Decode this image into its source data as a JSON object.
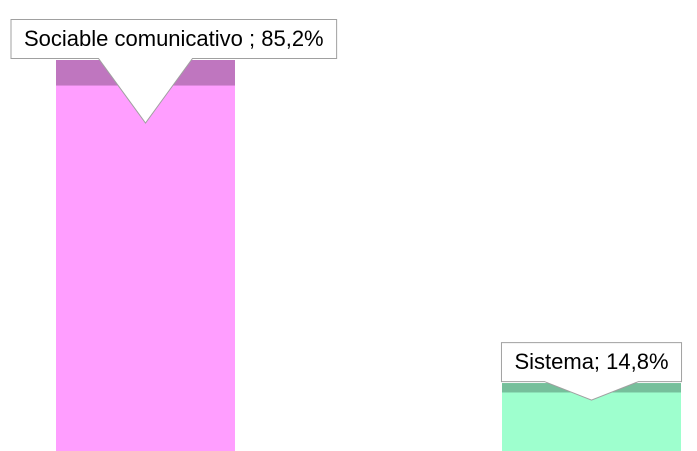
{
  "chart_data": {
    "type": "bar",
    "values": [
      85.2,
      14.8
    ],
    "value_labels": [
      "Sociable comunicativo ; 85,2%",
      "Sistema; 14,8%"
    ],
    "colors": [
      "#ff9eff",
      "#9effce"
    ]
  }
}
